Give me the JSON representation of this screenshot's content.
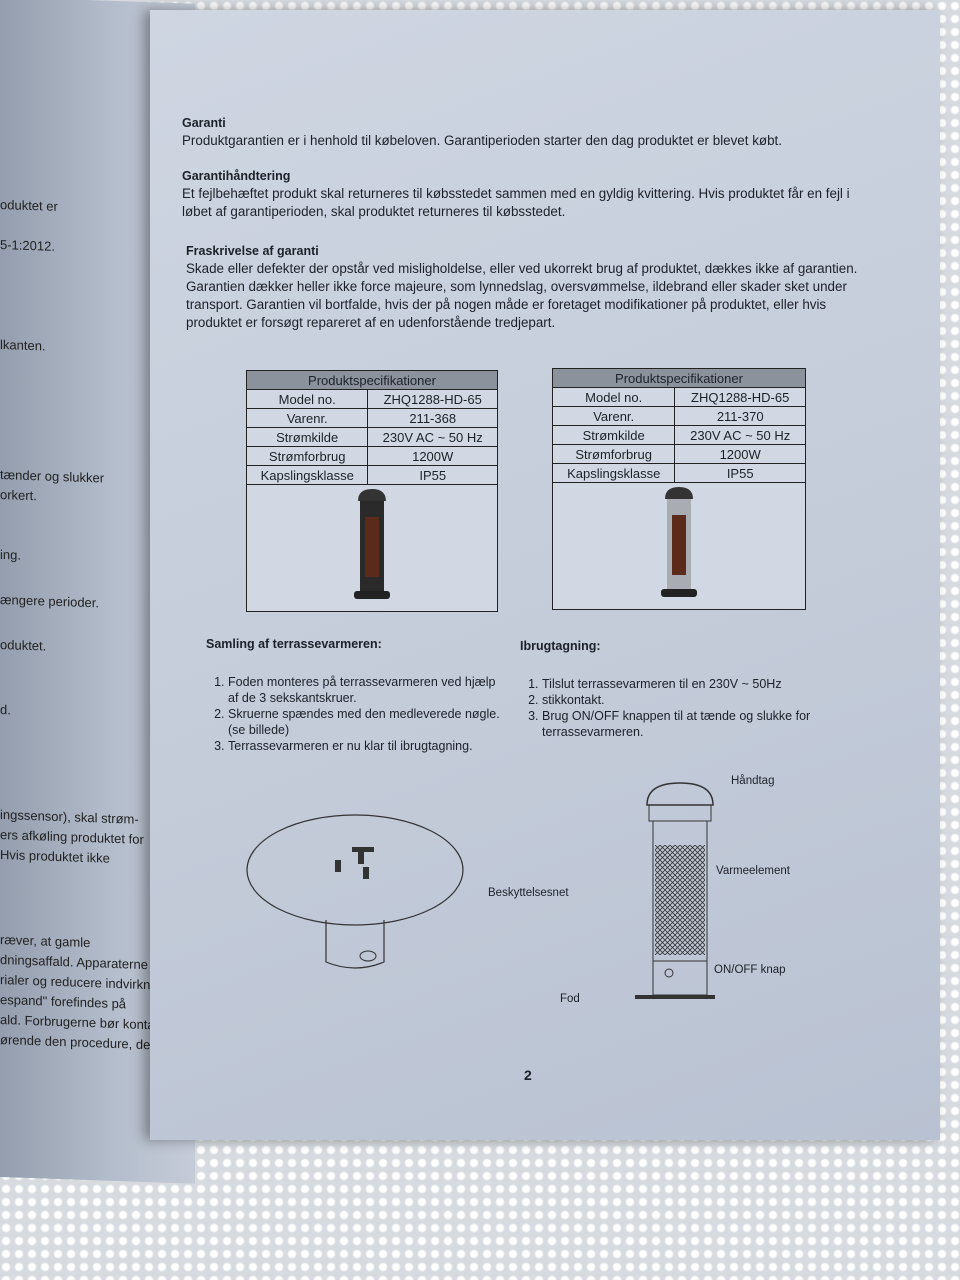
{
  "left_page": {
    "fragments": [
      "oduktet er",
      "5-1:2012.",
      "lkanten.",
      "tænder og slukker",
      "orkert.",
      "ing.",
      "ængere perioder.",
      "oduktet.",
      "d.",
      "ingssensor), skal strøm-",
      "ers afkøling produktet for",
      "Hvis produktet ikke",
      "ræver, at gamle",
      "dningsaffald. Apparaterne skal",
      "rialer og reducere indvirkning",
      "espand\" forefindes på",
      "ald. Forbrugerne bør kontakte",
      "ørende den procedure, der"
    ]
  },
  "sections": [
    {
      "title": "Garanti",
      "text": "Produktgarantien er i henhold til købeloven. Garantiperioden starter den dag produktet er blevet købt."
    },
    {
      "title": "Garantihåndtering",
      "text": "Et fejlbehæftet produkt skal returneres til købsstedet sammen med en gyldig kvittering. Hvis produktet får en fejl i løbet af garantiperioden, skal produktet returneres til købsstedet."
    },
    {
      "title": "Fraskrivelse af garanti",
      "text": "Skade eller defekter der opstår ved misligholdelse, eller ved ukorrekt brug af produktet, dækkes ikke af garantien. Garantien dækker heller ikke force majeure, som lynnedslag, oversvømmelse, ildebrand eller skader sket under transport. Garantien vil bortfalde, hvis der på nogen måde er foretaget modifikationer på produktet, eller hvis produktet er forsøgt repareret af en udenforstående tredjepart."
    }
  ],
  "spec_tables": [
    {
      "header": "Produktspecifikationer",
      "rows": [
        [
          "Model no.",
          "ZHQ1288-HD-65"
        ],
        [
          "Varenr.",
          "211-368"
        ],
        [
          "Strømkilde",
          "230V AC ~ 50 Hz"
        ],
        [
          "Strømforbrug",
          "1200W"
        ],
        [
          "Kapslingsklasse",
          "IP55"
        ]
      ],
      "heater_color": "#2a2a2a"
    },
    {
      "header": "Produktspecifikationer",
      "rows": [
        [
          "Model no.",
          "ZHQ1288-HD-65"
        ],
        [
          "Varenr.",
          "211-370"
        ],
        [
          "Strømkilde",
          "230V AC ~ 50 Hz"
        ],
        [
          "Strømforbrug",
          "1200W"
        ],
        [
          "Kapslingsklasse",
          "IP55"
        ]
      ],
      "heater_color": "#a9adb3"
    }
  ],
  "assembly": {
    "title": "Samling af terrassevarmeren:",
    "steps": [
      "Foden monteres på terrassevarmeren ved hjælp af de 3 sekskantskruer.",
      "Skruerne spændes med den medleverede nøgle. (se billede)",
      "Terrassevarmeren er nu klar til ibrugtagning."
    ]
  },
  "usage": {
    "title": "Ibrugtagning:",
    "steps": [
      "Tilslut terrassevarmeren til en 230V ~ 50Hz",
      "stikkontakt.",
      "Brug ON/OFF knappen til at tænde og slukke for terrassevarmeren."
    ]
  },
  "diagram_labels": {
    "handle": "Håndtag",
    "element": "Varmeelement",
    "guard": "Beskyttelsesnet",
    "switch": "ON/OFF knap",
    "foot": "Fod"
  },
  "page_number": "2"
}
